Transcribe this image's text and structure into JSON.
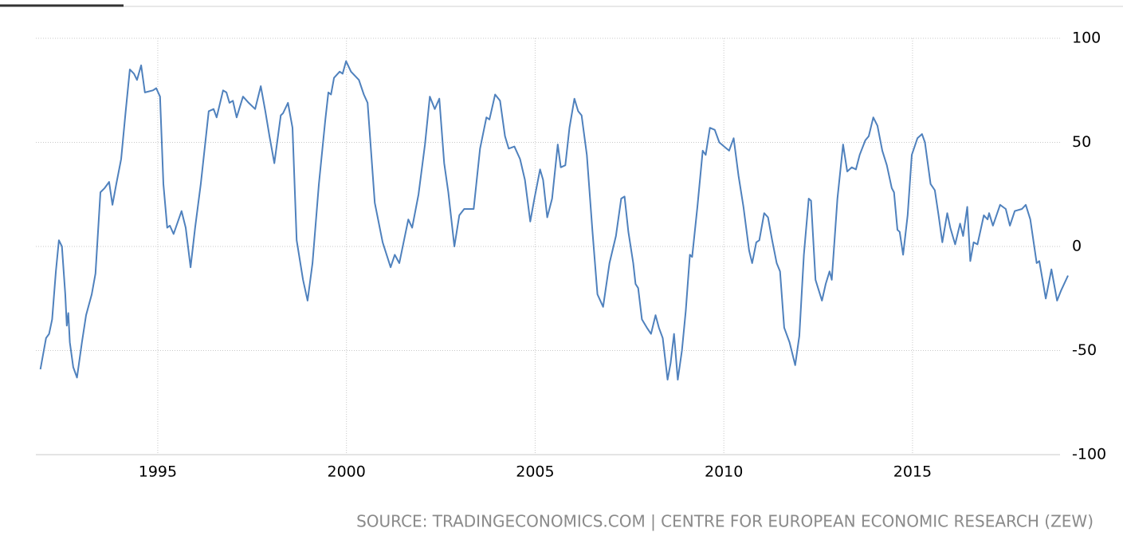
{
  "chart_data": {
    "type": "line",
    "source": "SOURCE: TRADINGECONOMICS.COM | CENTRE FOR EUROPEAN ECONOMIC RESEARCH (ZEW)",
    "xlim": [
      1991.77,
      2019.12
    ],
    "xticks": [
      1995,
      2000,
      2005,
      2010,
      2015
    ],
    "ylim": [
      -100,
      100
    ],
    "yticks": [
      100,
      50,
      0,
      -50,
      -100
    ],
    "grid": true,
    "series": [
      {
        "color": "#4f81bd",
        "x": [
          1991.89,
          1992.04,
          1992.12,
          1992.2,
          1992.3,
          1992.38,
          1992.46,
          1992.55,
          1992.59,
          1992.63,
          1992.67,
          1992.76,
          1992.86,
          1992.99,
          1993.1,
          1993.25,
          1993.35,
          1993.48,
          1993.59,
          1993.71,
          1993.8,
          1993.9,
          1994.03,
          1994.15,
          1994.26,
          1994.37,
          1994.45,
          1994.56,
          1994.66,
          1994.87,
          1994.96,
          1995.06,
          1995.15,
          1995.25,
          1995.32,
          1995.42,
          1995.63,
          1995.74,
          1995.87,
          1995.99,
          1996.14,
          1996.35,
          1996.48,
          1996.56,
          1996.73,
          1996.82,
          1996.9,
          1996.99,
          1997.09,
          1997.26,
          1997.41,
          1997.58,
          1997.73,
          1997.85,
          1997.96,
          1998.09,
          1998.26,
          1998.32,
          1998.45,
          1998.57,
          1998.68,
          1998.85,
          1998.97,
          1999.1,
          1999.27,
          1999.44,
          1999.52,
          1999.59,
          1999.67,
          1999.82,
          1999.9,
          1999.99,
          2000.12,
          2000.33,
          2000.46,
          2000.56,
          2000.75,
          2000.96,
          2001.17,
          2001.28,
          2001.4,
          2001.64,
          2001.74,
          2001.91,
          2002.08,
          2002.21,
          2002.34,
          2002.46,
          2002.59,
          2002.7,
          2002.86,
          2002.99,
          2003.12,
          2003.37,
          2003.54,
          2003.71,
          2003.79,
          2003.94,
          2004.07,
          2004.2,
          2004.3,
          2004.45,
          2004.6,
          2004.73,
          2004.87,
          2004.98,
          2005.13,
          2005.21,
          2005.32,
          2005.45,
          2005.6,
          2005.68,
          2005.8,
          2005.91,
          2006.04,
          2006.14,
          2006.23,
          2006.37,
          2006.52,
          2006.65,
          2006.8,
          2006.97,
          2007.14,
          2007.28,
          2007.37,
          2007.47,
          2007.6,
          2007.66,
          2007.73,
          2007.83,
          2007.96,
          2008.07,
          2008.19,
          2008.28,
          2008.38,
          2008.51,
          2008.59,
          2008.68,
          2008.78,
          2008.89,
          2008.99,
          2009.1,
          2009.16,
          2009.3,
          2009.44,
          2009.52,
          2009.63,
          2009.76,
          2009.88,
          2010.01,
          2010.14,
          2010.26,
          2010.39,
          2010.52,
          2010.67,
          2010.75,
          2010.86,
          2010.94,
          2011.07,
          2011.17,
          2011.28,
          2011.4,
          2011.49,
          2011.6,
          2011.74,
          2011.89,
          2012.0,
          2012.12,
          2012.25,
          2012.31,
          2012.43,
          2012.6,
          2012.7,
          2012.8,
          2012.86,
          2013.01,
          2013.16,
          2013.27,
          2013.39,
          2013.5,
          2013.6,
          2013.75,
          2013.84,
          2013.96,
          2014.07,
          2014.2,
          2014.32,
          2014.45,
          2014.51,
          2014.6,
          2014.66,
          2014.75,
          2014.87,
          2014.98,
          2015.13,
          2015.25,
          2015.33,
          2015.48,
          2015.59,
          2015.69,
          2015.79,
          2015.92,
          2016.0,
          2016.13,
          2016.26,
          2016.34,
          2016.45,
          2016.53,
          2016.62,
          2016.72,
          2016.89,
          2016.99,
          2017.03,
          2017.13,
          2017.32,
          2017.47,
          2017.58,
          2017.71,
          2017.9,
          2018.0,
          2018.12,
          2018.29,
          2018.36,
          2018.53,
          2018.68,
          2018.83,
          2018.94,
          2019.12
        ],
        "values": [
          -59,
          -44,
          -42,
          -35,
          -12,
          3,
          0,
          -23,
          -38,
          -32,
          -46,
          -58,
          -63,
          -46,
          -33,
          -23,
          -13,
          26,
          28,
          31,
          20,
          30,
          42,
          65,
          85,
          83,
          80,
          87,
          74,
          75,
          76,
          72,
          30,
          9,
          10,
          6,
          17,
          9,
          -10,
          9,
          30,
          65,
          66,
          62,
          75,
          74,
          69,
          70,
          62,
          72,
          69,
          66,
          77,
          65,
          53,
          40,
          63,
          64,
          69,
          57,
          3,
          -16,
          -26,
          -8,
          30,
          61,
          74,
          73,
          81,
          84,
          83,
          89,
          84,
          80,
          73,
          69,
          21,
          2,
          -10,
          -4,
          -8,
          13,
          9,
          25,
          49,
          72,
          66,
          71,
          40,
          26,
          0,
          15,
          18,
          18,
          47,
          62,
          61,
          73,
          70,
          53,
          47,
          48,
          42,
          32,
          12,
          23,
          37,
          32,
          14,
          23,
          49,
          38,
          39,
          57,
          71,
          65,
          63,
          44,
          7,
          -23,
          -29,
          -8,
          5,
          23,
          24,
          7,
          -8,
          -18,
          -20,
          -35,
          -39,
          -42,
          -33,
          -39,
          -44,
          -64,
          -56,
          -42,
          -64,
          -50,
          -31,
          -4,
          -5,
          19,
          46,
          44,
          57,
          56,
          50,
          48,
          46,
          52,
          34,
          19,
          -2,
          -8,
          2,
          3,
          16,
          14,
          3,
          -8,
          -12,
          -39,
          -46,
          -57,
          -43,
          -4,
          23,
          22,
          -16,
          -26,
          -18,
          -12,
          -16,
          23,
          49,
          36,
          38,
          37,
          44,
          51,
          53,
          62,
          58,
          46,
          39,
          28,
          26,
          8,
          7,
          -4,
          15,
          44,
          52,
          54,
          50,
          30,
          27,
          15,
          2,
          16,
          9,
          1,
          11,
          5,
          19,
          -7,
          2,
          1,
          15,
          13,
          16,
          10,
          20,
          18,
          10,
          17,
          18,
          20,
          13,
          -8,
          -7,
          -25,
          -11,
          -26,
          -21,
          -14
        ]
      }
    ]
  }
}
